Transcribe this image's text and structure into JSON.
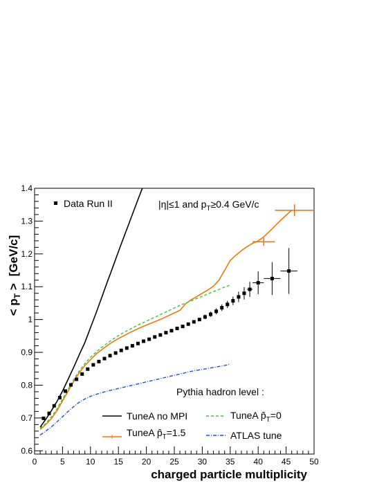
{
  "chart_data": {
    "type": "line",
    "title": "",
    "xlabel": "charged particle multiplicity",
    "ylabel_main": "< p",
    "ylabel_sub": "T",
    "ylabel_tail": " >",
    "ylabel_unit": "[GeV/c]",
    "xlim": [
      0,
      50
    ],
    "ylim": [
      0.59,
      1.4
    ],
    "x_ticks": [
      0,
      5,
      10,
      15,
      20,
      25,
      30,
      35,
      40,
      45,
      50
    ],
    "x_tick_labels": [
      "0",
      "5",
      "10",
      "15",
      "20",
      "25",
      "30",
      "35",
      "40",
      "45",
      "50"
    ],
    "y_ticks": [
      0.6,
      0.7,
      0.8,
      0.9,
      1.0,
      1.1,
      1.2,
      1.3,
      1.4
    ],
    "y_tick_labels": [
      "0.6",
      "0.7",
      "0.8",
      "0.9",
      "1",
      "1.1",
      "1.2",
      "1.3",
      "1.4"
    ],
    "cuts_text": {
      "pre": "|η|≤1 and p",
      "sub": "T",
      "post": "≥0.4 GeV/c"
    },
    "legend_header": "Pythia hadron level :",
    "data_series": {
      "name": "Data Run II",
      "color": "#000000",
      "points": [
        [
          1.6,
          0.699,
          0.005
        ],
        [
          2.6,
          0.714,
          0.005
        ],
        [
          3.5,
          0.737,
          0.005
        ],
        [
          4.5,
          0.762,
          0.005
        ],
        [
          5.5,
          0.782,
          0.005
        ],
        [
          6.5,
          0.801,
          0.005
        ],
        [
          7.5,
          0.818,
          0.005
        ],
        [
          8.5,
          0.834,
          0.005
        ],
        [
          9.5,
          0.849,
          0.005
        ],
        [
          10.5,
          0.862,
          0.005
        ],
        [
          11.5,
          0.872,
          0.005
        ],
        [
          12.5,
          0.881,
          0.005
        ],
        [
          13.5,
          0.89,
          0.005
        ],
        [
          14.5,
          0.898,
          0.005
        ],
        [
          15.5,
          0.906,
          0.005
        ],
        [
          16.5,
          0.913,
          0.005
        ],
        [
          17.5,
          0.92,
          0.005
        ],
        [
          18.5,
          0.927,
          0.005
        ],
        [
          19.5,
          0.934,
          0.005
        ],
        [
          20.5,
          0.94,
          0.005
        ],
        [
          21.5,
          0.947,
          0.005
        ],
        [
          22.5,
          0.953,
          0.005
        ],
        [
          23.5,
          0.96,
          0.005
        ],
        [
          24.5,
          0.966,
          0.005
        ],
        [
          25.5,
          0.973,
          0.005
        ],
        [
          26.5,
          0.979,
          0.005
        ],
        [
          27.5,
          0.986,
          0.005
        ],
        [
          28.5,
          0.993,
          0.006
        ],
        [
          29.5,
          1.0,
          0.006
        ],
        [
          30.5,
          1.008,
          0.007
        ],
        [
          31.5,
          1.016,
          0.008
        ],
        [
          32.5,
          1.025,
          0.009
        ],
        [
          33.5,
          1.036,
          0.01
        ],
        [
          34.5,
          1.046,
          0.011
        ],
        [
          35.5,
          1.057,
          0.013
        ],
        [
          36.5,
          1.069,
          0.016
        ],
        [
          37.5,
          1.08,
          0.019
        ],
        [
          38.5,
          1.092,
          0.023
        ],
        [
          40.0,
          1.112,
          0.035
        ],
        [
          42.5,
          1.125,
          0.05
        ],
        [
          45.5,
          1.148,
          0.07
        ]
      ],
      "x_errors": [
        [
          38.5,
          0.5
        ],
        [
          40.0,
          1.0
        ],
        [
          42.5,
          1.5
        ],
        [
          45.5,
          1.5
        ]
      ]
    },
    "series": [
      {
        "name": "TuneA no MPI",
        "color": "#000000",
        "style": "solid",
        "x": [
          1.0,
          2.0,
          3.0,
          4.0,
          5.0,
          6.0,
          7.0,
          8.0,
          9.0,
          10.0,
          11.0,
          12.0,
          13.0,
          14.0,
          15.0,
          16.0,
          17.0,
          18.0,
          19.0,
          20.0,
          20.6
        ],
        "y": [
          0.672,
          0.696,
          0.722,
          0.75,
          0.782,
          0.818,
          0.855,
          0.893,
          0.93,
          0.975,
          1.02,
          1.067,
          1.114,
          1.16,
          1.207,
          1.253,
          1.298,
          1.343,
          1.388,
          1.43,
          1.455
        ]
      },
      {
        "name": "TuneA p̂T=1.5",
        "color": "#f07800",
        "style": "solid",
        "x": [
          1.0,
          2.0,
          3.0,
          4.0,
          5.0,
          6.0,
          7.0,
          8.0,
          9.0,
          10.0,
          11.0,
          12.0,
          13.0,
          14.0,
          15.0,
          16.0,
          17.0,
          18.0,
          19.0,
          20.0,
          21.0,
          22.0,
          23.0,
          24.0,
          25.0,
          26.0,
          27.0,
          28.0,
          29.0,
          30.0,
          31.0,
          32.0,
          33.0,
          34.0,
          35.0,
          36.0,
          37.0,
          38.0,
          39.0,
          40.0,
          41.0,
          42.0,
          43.0,
          44.0,
          45.0,
          46.0
        ],
        "y": [
          0.665,
          0.68,
          0.698,
          0.722,
          0.752,
          0.782,
          0.812,
          0.838,
          0.86,
          0.878,
          0.895,
          0.908,
          0.921,
          0.932,
          0.942,
          0.951,
          0.96,
          0.968,
          0.976,
          0.983,
          0.99,
          0.997,
          1.004,
          1.012,
          1.02,
          1.028,
          1.048,
          1.06,
          1.07,
          1.08,
          1.09,
          1.102,
          1.12,
          1.15,
          1.18,
          1.196,
          1.21,
          1.222,
          1.232,
          1.24,
          1.252,
          1.268,
          1.285,
          1.302,
          1.318,
          1.333
        ]
      },
      {
        "name": "TuneA p̂T=0",
        "color": "#33cc33",
        "style": "dashed",
        "x": [
          1.0,
          2.0,
          3.0,
          4.0,
          5.0,
          6.0,
          7.0,
          8.0,
          9.0,
          10.0,
          11.0,
          12.0,
          13.0,
          14.0,
          15.0,
          16.0,
          17.0,
          18.0,
          19.0,
          20.0,
          21.0,
          22.0,
          23.0,
          24.0,
          25.0,
          26.0,
          27.0,
          28.0,
          29.0,
          30.0,
          31.0,
          32.0,
          33.0,
          34.0,
          35.0
        ],
        "y": [
          0.668,
          0.684,
          0.703,
          0.728,
          0.758,
          0.788,
          0.818,
          0.844,
          0.866,
          0.885,
          0.901,
          0.915,
          0.928,
          0.94,
          0.951,
          0.961,
          0.97,
          0.979,
          0.987,
          0.995,
          1.003,
          1.011,
          1.019,
          1.027,
          1.035,
          1.043,
          1.05,
          1.057,
          1.064,
          1.071,
          1.078,
          1.085,
          1.092,
          1.099,
          1.105
        ]
      },
      {
        "name": "ATLAS tune",
        "color": "#1a4fd6",
        "style": "dashdot",
        "x": [
          1.0,
          2.0,
          3.0,
          4.0,
          5.0,
          6.0,
          7.0,
          8.0,
          9.0,
          10.0,
          11.0,
          12.0,
          13.0,
          14.0,
          15.0,
          16.0,
          17.0,
          18.0,
          19.0,
          20.0,
          21.0,
          22.0,
          23.0,
          24.0,
          25.0,
          26.0,
          27.0,
          28.0,
          29.0,
          30.0,
          31.0,
          32.0,
          33.0,
          34.0,
          35.0
        ],
        "y": [
          0.648,
          0.66,
          0.673,
          0.688,
          0.704,
          0.72,
          0.735,
          0.748,
          0.758,
          0.766,
          0.772,
          0.777,
          0.782,
          0.786,
          0.79,
          0.794,
          0.798,
          0.802,
          0.806,
          0.81,
          0.814,
          0.818,
          0.822,
          0.826,
          0.83,
          0.834,
          0.838,
          0.842,
          0.845,
          0.848,
          0.851,
          0.854,
          0.857,
          0.86,
          0.864
        ]
      }
    ],
    "orange_big_points": [
      {
        "x": 41.0,
        "y": 1.237,
        "xerr": 2.0,
        "yerr": 0.012
      },
      {
        "x": 46.5,
        "y": 1.333,
        "xerr": 3.5,
        "yerr": 0.018
      }
    ],
    "legend": {
      "data_label": "Data Run II",
      "noMPI_label": "TuneA no MPI",
      "pt15_pre": "TuneA ",
      "pt15_hat": "p̂",
      "pt15_sub": "T",
      "pt15_post": "=1.5",
      "pt0_pre": "TuneA ",
      "pt0_hat": "p̂",
      "pt0_sub": "T",
      "pt0_post": "=0",
      "atlas_label": "ATLAS tune"
    }
  }
}
